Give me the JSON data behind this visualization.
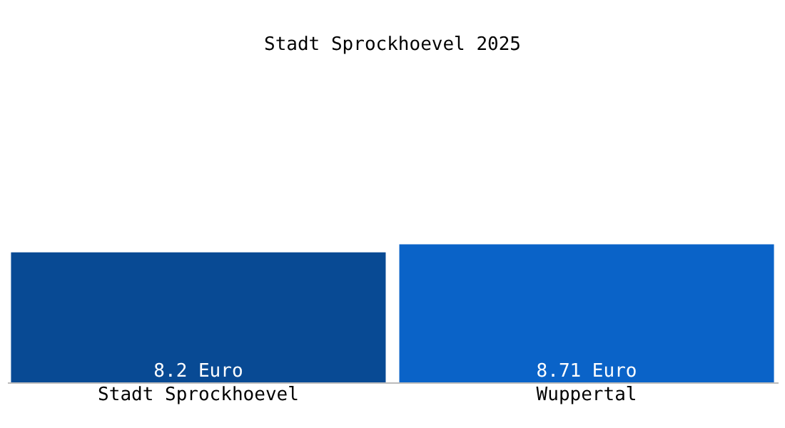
{
  "chart_data": {
    "type": "bar",
    "title": "Stadt Sprockhoevel 2025",
    "categories": [
      "Stadt Sprockhoevel",
      "Wuppertal"
    ],
    "values": [
      8.2,
      8.71
    ],
    "colors": [
      "#084a94",
      "#0a63c8"
    ],
    "value_labels": [
      "8.2 Euro",
      "8.71 Euro"
    ]
  }
}
